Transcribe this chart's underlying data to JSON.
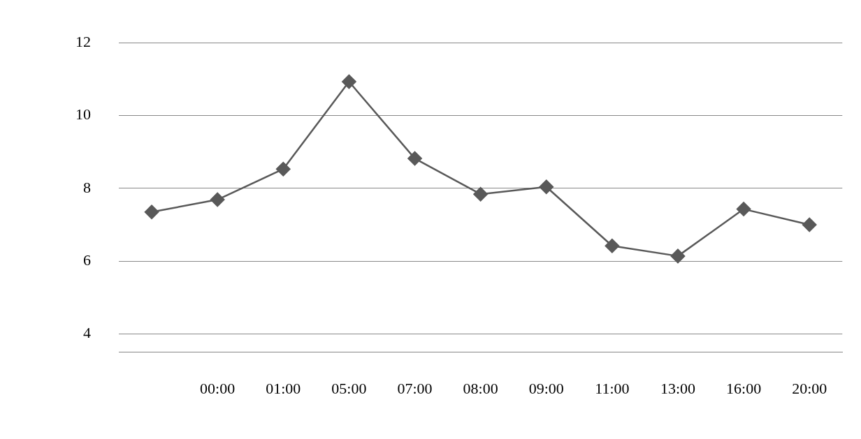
{
  "chart_data": {
    "type": "line",
    "categories": [
      null,
      "00:00",
      "01:00",
      "05:00",
      "07:00",
      "08:00",
      "09:00",
      "11:00",
      "13:00",
      "16:00",
      "20:00"
    ],
    "series": [
      {
        "color": "#595959",
        "values": [
          7.35,
          7.69,
          8.53,
          10.93,
          8.82,
          7.84,
          8.04,
          6.42,
          6.14,
          7.43,
          7.0
        ]
      }
    ],
    "ylim": [
      3.5,
      12
    ],
    "yticks": [
      4,
      6,
      8,
      10,
      12
    ],
    "grid": "y",
    "legend": false,
    "marker": "diamond",
    "line_style": "solid"
  }
}
